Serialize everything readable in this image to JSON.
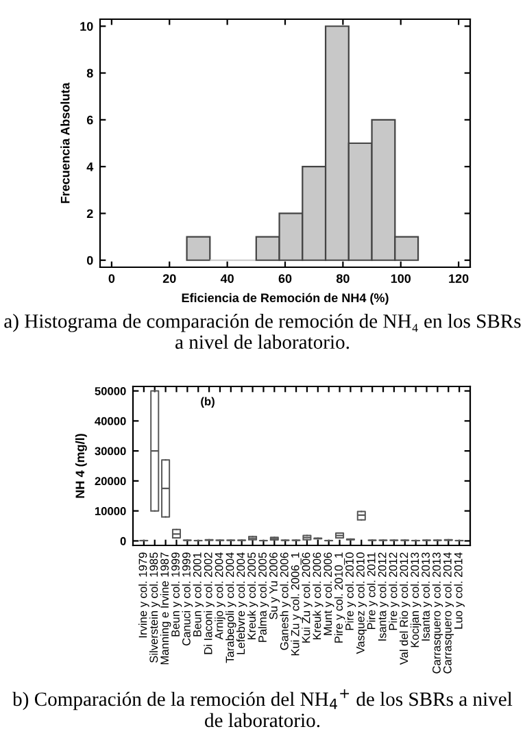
{
  "chart_data": [
    {
      "type": "histogram",
      "xlabel": "Eficiencia de Remoción de NH4 (%)",
      "ylabel": "Frecuencia Absoluta",
      "bins": [
        26,
        34,
        42,
        50,
        58,
        66,
        74,
        82,
        90,
        98,
        106
      ],
      "values": [
        1,
        0,
        0,
        1,
        2,
        4,
        10,
        5,
        6,
        1
      ],
      "color": "#c8c8c8",
      "xlim": [
        -4,
        124
      ],
      "xticks": [
        0,
        20,
        40,
        60,
        80,
        100,
        120
      ],
      "ylim": [
        -0.3,
        10.3
      ],
      "yticks": [
        0,
        2,
        4,
        6,
        8,
        10
      ],
      "annotations": [
        "a) Histograma de comparación de remoción de NH₄ en los SBRs a nivel de laboratorio."
      ]
    },
    {
      "type": "box",
      "ylabel": "NH 4 (mg/l)",
      "categories": [
        "Irvine y col. 1979",
        "Silverstein y col. 1985",
        "Manning e Irvine 1987",
        "Beun y col. 1999",
        "Canuci y col. 1999",
        "Beun y col. 2001",
        "Di Iaconi y col. 2002",
        "Arnijo y col. 2004",
        "Tarabegoli y col. 2004",
        "Lefebvre y col. 2004",
        "Kreuk y col. 2005",
        "Palma y col. 2005",
        "Su y Yu 2006",
        "Ganesh y col. 2006",
        "Kui Zu y col. 2006_1",
        "Kui Zu y col. 2006",
        "Kreuk y col. 2006",
        "Munt y col. 2006",
        "Pire y col. 2010_1",
        "Pire y col. 2010",
        "Vasquez y col. 2010",
        "Pire y col. 2011",
        "Isanta y col. 2012",
        "Pire y col. 2012",
        "Val del Rio y col. 2012",
        "Kocijan y col. 2013",
        "Isanta y col. 2013",
        "Carrasquero y col. 2013",
        "Carrasquero y col. 2014",
        "Luo y col. 2014"
      ],
      "boxes": [
        {
          "low": 100,
          "q1": 100,
          "median": 100,
          "q3": 100,
          "high": 100
        },
        {
          "low": 10000,
          "q1": 10000,
          "median": 30000,
          "q3": 50000,
          "high": 50000
        },
        {
          "low": 8000,
          "q1": 8000,
          "median": 17500,
          "q3": 27000,
          "high": 27000
        },
        {
          "low": 1000,
          "q1": 1000,
          "median": 2300,
          "q3": 3800,
          "high": 3800
        },
        {
          "low": 200,
          "q1": 200,
          "median": 200,
          "q3": 200,
          "high": 200
        },
        {
          "low": 100,
          "q1": 100,
          "median": 100,
          "q3": 100,
          "high": 100
        },
        {
          "low": 200,
          "q1": 200,
          "median": 300,
          "q3": 400,
          "high": 400
        },
        {
          "low": 200,
          "q1": 200,
          "median": 200,
          "q3": 200,
          "high": 200
        },
        {
          "low": 200,
          "q1": 200,
          "median": 200,
          "q3": 200,
          "high": 200
        },
        {
          "low": 200,
          "q1": 200,
          "median": 200,
          "q3": 200,
          "high": 200
        },
        {
          "low": 400,
          "q1": 400,
          "median": 900,
          "q3": 1500,
          "high": 1500
        },
        {
          "low": 100,
          "q1": 100,
          "median": 100,
          "q3": 100,
          "high": 100
        },
        {
          "low": 300,
          "q1": 300,
          "median": 700,
          "q3": 1200,
          "high": 1200
        },
        {
          "low": 200,
          "q1": 200,
          "median": 200,
          "q3": 200,
          "high": 200
        },
        {
          "low": 200,
          "q1": 200,
          "median": 200,
          "q3": 200,
          "high": 200
        },
        {
          "low": 400,
          "q1": 400,
          "median": 1100,
          "q3": 1800,
          "high": 1800
        },
        {
          "low": 700,
          "q1": 700,
          "median": 800,
          "q3": 900,
          "high": 900
        },
        {
          "low": 100,
          "q1": 100,
          "median": 100,
          "q3": 100,
          "high": 100
        },
        {
          "low": 1000,
          "q1": 1000,
          "median": 1800,
          "q3": 2600,
          "high": 2600
        },
        {
          "low": 400,
          "q1": 400,
          "median": 500,
          "q3": 600,
          "high": 600
        },
        {
          "low": 7000,
          "q1": 7000,
          "median": 8600,
          "q3": 9800,
          "high": 9800
        },
        {
          "low": 200,
          "q1": 200,
          "median": 200,
          "q3": 200,
          "high": 200
        },
        {
          "low": 200,
          "q1": 200,
          "median": 200,
          "q3": 200,
          "high": 200
        },
        {
          "low": 200,
          "q1": 200,
          "median": 200,
          "q3": 200,
          "high": 200
        },
        {
          "low": 200,
          "q1": 200,
          "median": 200,
          "q3": 200,
          "high": 200
        },
        {
          "low": 100,
          "q1": 100,
          "median": 100,
          "q3": 100,
          "high": 100
        },
        {
          "low": 200,
          "q1": 200,
          "median": 200,
          "q3": 200,
          "high": 200
        },
        {
          "low": 200,
          "q1": 200,
          "median": 200,
          "q3": 200,
          "high": 200
        },
        {
          "low": 200,
          "q1": 200,
          "median": 300,
          "q3": 400,
          "high": 400
        },
        {
          "low": 100,
          "q1": 100,
          "median": 100,
          "q3": 100,
          "high": 100
        }
      ],
      "ylim": [
        -1500,
        51500
      ],
      "yticks": [
        0,
        10000,
        20000,
        30000,
        40000,
        50000
      ],
      "annotations": [
        "(b)",
        "b) Comparación de la remoción del NH$_{4}$$^{+}$ de los SBRs a nivel de laboratorio."
      ]
    }
  ]
}
